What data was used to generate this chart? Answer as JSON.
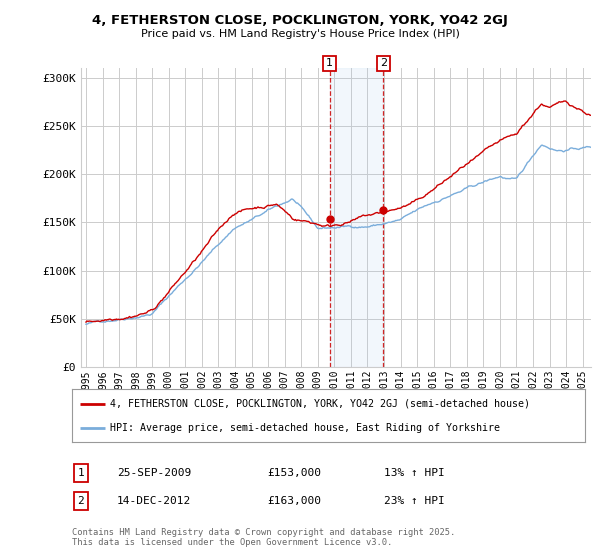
{
  "title": "4, FETHERSTON CLOSE, POCKLINGTON, YORK, YO42 2GJ",
  "subtitle": "Price paid vs. HM Land Registry's House Price Index (HPI)",
  "legend_line1": "4, FETHERSTON CLOSE, POCKLINGTON, YORK, YO42 2GJ (semi-detached house)",
  "legend_line2": "HPI: Average price, semi-detached house, East Riding of Yorkshire",
  "sale1_date": "25-SEP-2009",
  "sale1_price": "£153,000",
  "sale1_hpi": "13% ↑ HPI",
  "sale2_date": "14-DEC-2012",
  "sale2_price": "£163,000",
  "sale2_hpi": "23% ↑ HPI",
  "footnote": "Contains HM Land Registry data © Crown copyright and database right 2025.\nThis data is licensed under the Open Government Licence v3.0.",
  "red_color": "#cc0000",
  "blue_color": "#7aaddb",
  "background_color": "#ffffff",
  "grid_color": "#cccccc",
  "ylim": [
    0,
    310000
  ],
  "yticks": [
    0,
    50000,
    100000,
    150000,
    200000,
    250000,
    300000
  ],
  "ytick_labels": [
    "£0",
    "£50K",
    "£100K",
    "£150K",
    "£200K",
    "£250K",
    "£300K"
  ],
  "x_start_year": 1995,
  "x_end_year": 2025,
  "xtick_years": [
    1995,
    1996,
    1997,
    1998,
    1999,
    2000,
    2001,
    2002,
    2003,
    2004,
    2005,
    2006,
    2007,
    2008,
    2009,
    2010,
    2011,
    2012,
    2013,
    2014,
    2015,
    2016,
    2017,
    2018,
    2019,
    2020,
    2021,
    2022,
    2023,
    2024,
    2025
  ]
}
